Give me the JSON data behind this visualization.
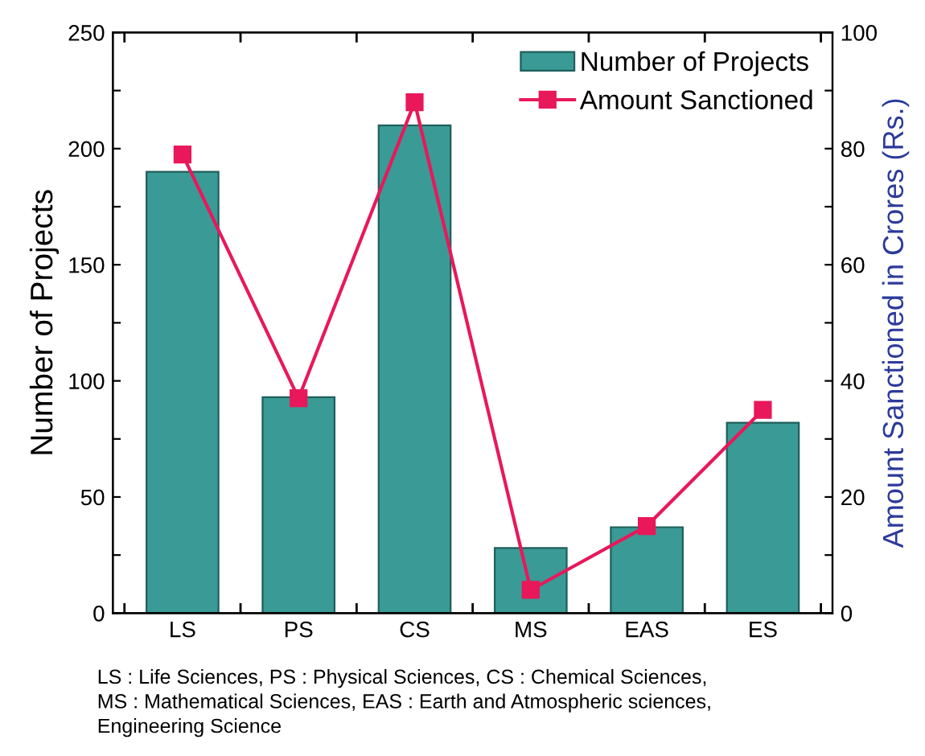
{
  "chart_data": {
    "type": "bar",
    "categories": [
      "LS",
      "PS",
      "CS",
      "MS",
      "EAS",
      "ES"
    ],
    "ylabel": "Number of Projects",
    "y2label": "Amount Sanctioned in Crores (Rs.)",
    "ylim": [
      0,
      250
    ],
    "yticks": [
      0,
      {
        "value": 25,
        "label": null
      },
      50,
      {
        "value": 75,
        "label": null
      },
      100,
      {
        "value": 125,
        "label": null
      },
      150,
      {
        "value": 175,
        "label": null
      },
      200,
      {
        "value": 225,
        "label": null
      },
      250
    ],
    "y2lim": [
      0,
      100
    ],
    "y2ticks": [
      0,
      {
        "value": 10,
        "label": null
      },
      20,
      {
        "value": 30,
        "label": null
      },
      40,
      {
        "value": 50,
        "label": null
      },
      60,
      {
        "value": 70,
        "label": null
      },
      80,
      {
        "value": 90,
        "label": null
      },
      100
    ],
    "series": [
      {
        "name": "Number of Projects",
        "color": "#3a9a96",
        "values": [
          190,
          93,
          210,
          28,
          37,
          82
        ]
      },
      {
        "name": "Amount Sanctioned",
        "type": "line",
        "axis": "y2",
        "color": "#e8185a",
        "marker": "square",
        "values": [
          79,
          37,
          88,
          4,
          15,
          35
        ]
      }
    ],
    "legend": "top right",
    "grid": false,
    "annotations": [
      "LS : Life Sciences, PS : Physical Sciences, CS : Chemical Sciences,\nMS : Mathematical Sciences, EAS : Earth and Atmospheric sciences,\nEngineering Science"
    ]
  }
}
